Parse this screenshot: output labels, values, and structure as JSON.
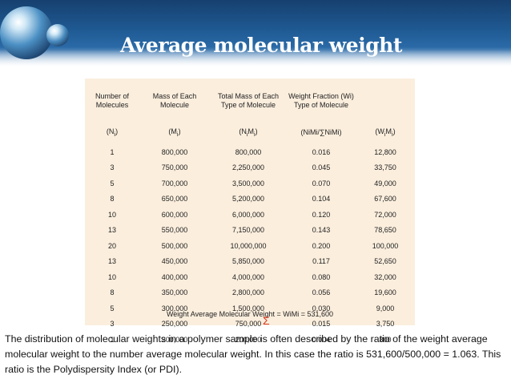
{
  "title": "Average molecular weight",
  "table": {
    "headers": [
      "Number of Molecules",
      "Mass of Each Molecule",
      "Total Mass of Each Type of Molecule",
      "Weight Fraction (Wi) Type of Molecule",
      ""
    ],
    "symbols": [
      {
        "base": "(N",
        "sub": "i",
        "tail": ")"
      },
      {
        "base": "(M",
        "sub": "i",
        "tail": ")"
      },
      {
        "base": "(N",
        "sub": "i",
        "mid": "M",
        "sub2": "i",
        "tail": ")"
      },
      {
        "text": "(NiMi/∑NiMi)"
      },
      {
        "base": "(W",
        "sub": "i",
        "mid": "M",
        "sub2": "i",
        "tail": ")"
      }
    ],
    "rows": [
      [
        "1",
        "800,000",
        "800,000",
        "0.016",
        "12,800"
      ],
      [
        "3",
        "750,000",
        "2,250,000",
        "0.045",
        "33,750"
      ],
      [
        "5",
        "700,000",
        "3,500,000",
        "0.070",
        "49,000"
      ],
      [
        "8",
        "650,000",
        "5,200,000",
        "0.104",
        "67,600"
      ],
      [
        "10",
        "600,000",
        "6,000,000",
        "0.120",
        "72,000"
      ],
      [
        "13",
        "550,000",
        "7,150,000",
        "0.143",
        "78,650"
      ],
      [
        "20",
        "500,000",
        "10,000,000",
        "0.200",
        "100,000"
      ],
      [
        "13",
        "450,000",
        "5,850,000",
        "0.117",
        "52,650"
      ],
      [
        "10",
        "400,000",
        "4,000,000",
        "0.080",
        "32,000"
      ],
      [
        "8",
        "350,000",
        "2,800,000",
        "0.056",
        "19,600"
      ],
      [
        "5",
        "300,000",
        "1,500,000",
        "0.030",
        "9,000"
      ],
      [
        "3",
        "250,000",
        "750,000",
        "0.015",
        "3,750"
      ],
      [
        "1",
        "200,000",
        "200,000",
        "0.004",
        "800"
      ]
    ],
    "footer": "Weight Average Molecular Weight =  WiMi = 531,600",
    "sigma": "Σ"
  },
  "caption": "The distribution of molecular weights in a polymer sample is often described by the ratio of the weight average molecular weight to the number average molecular weight. In this case the ratio is 531,600/500,000 = 1.063. This ratio is the Polydispersity Index (or PDI)."
}
